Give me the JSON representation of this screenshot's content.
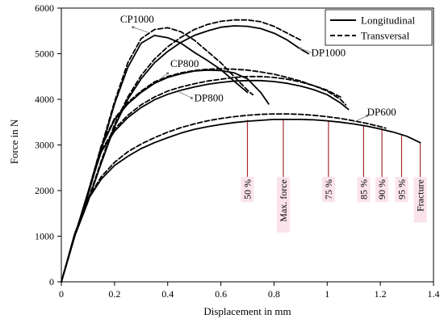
{
  "chart_data": {
    "type": "line",
    "title": "",
    "xlabel": "Displacement in mm",
    "ylabel": "Force in N",
    "xlim": [
      0,
      1.4
    ],
    "ylim": [
      0,
      6000
    ],
    "xticks": [
      0,
      0.2,
      0.4,
      0.6,
      0.8,
      1,
      1.2,
      1.4
    ],
    "xtick_labels": [
      "0",
      "0.2",
      "0.4",
      "0.6",
      "0.8",
      "1",
      "1.2",
      "1.4"
    ],
    "yticks": [
      0,
      1000,
      2000,
      3000,
      4000,
      5000,
      6000
    ],
    "ytick_labels": [
      "0",
      "1000",
      "2000",
      "3000",
      "4000",
      "5000",
      "6000"
    ],
    "grid": false,
    "legend": {
      "position": "top-right",
      "entries": [
        {
          "label": "Longitudinal",
          "style": "solid"
        },
        {
          "label": "Transversal",
          "style": "dashed"
        }
      ]
    },
    "series": [
      {
        "material": "CP1000",
        "style": "solid",
        "x": [
          0,
          0.05,
          0.1,
          0.15,
          0.2,
          0.25,
          0.3,
          0.35,
          0.4,
          0.45,
          0.5,
          0.55,
          0.6,
          0.65,
          0.7
        ],
        "y": [
          0,
          1000,
          1900,
          2900,
          3900,
          4700,
          5230,
          5400,
          5350,
          5230,
          5030,
          4850,
          4650,
          4400,
          4150
        ]
      },
      {
        "material": "CP1000",
        "style": "dashed",
        "x": [
          0,
          0.05,
          0.1,
          0.15,
          0.2,
          0.25,
          0.3,
          0.35,
          0.4,
          0.45,
          0.5,
          0.55,
          0.6,
          0.65,
          0.7,
          0.72
        ],
        "y": [
          0,
          1000,
          1900,
          2950,
          3950,
          4800,
          5330,
          5530,
          5570,
          5480,
          5300,
          5050,
          4800,
          4500,
          4200,
          4100
        ]
      },
      {
        "material": "DP1000",
        "style": "solid",
        "x": [
          0,
          0.05,
          0.1,
          0.15,
          0.2,
          0.25,
          0.3,
          0.35,
          0.4,
          0.45,
          0.5,
          0.55,
          0.6,
          0.65,
          0.7,
          0.75,
          0.8,
          0.85,
          0.9,
          0.93
        ],
        "y": [
          0,
          1000,
          1750,
          2600,
          3400,
          4000,
          4450,
          4800,
          5050,
          5250,
          5400,
          5500,
          5580,
          5610,
          5600,
          5550,
          5450,
          5300,
          5100,
          5000
        ]
      },
      {
        "material": "DP1000",
        "style": "dashed",
        "x": [
          0,
          0.05,
          0.1,
          0.15,
          0.2,
          0.25,
          0.3,
          0.35,
          0.4,
          0.45,
          0.5,
          0.55,
          0.6,
          0.65,
          0.7,
          0.75,
          0.8,
          0.85,
          0.9
        ],
        "y": [
          0,
          1000,
          1780,
          2650,
          3450,
          4050,
          4520,
          4880,
          5150,
          5360,
          5530,
          5640,
          5710,
          5740,
          5740,
          5700,
          5600,
          5450,
          5300
        ]
      },
      {
        "material": "CP800",
        "style": "solid",
        "x": [
          0,
          0.05,
          0.1,
          0.15,
          0.2,
          0.25,
          0.3,
          0.35,
          0.4,
          0.45,
          0.5,
          0.55,
          0.6,
          0.65,
          0.7,
          0.75,
          0.78
        ],
        "y": [
          0,
          1000,
          1950,
          2950,
          3550,
          3900,
          4150,
          4350,
          4480,
          4560,
          4620,
          4640,
          4630,
          4580,
          4450,
          4150,
          3900
        ]
      },
      {
        "material": "CP800",
        "style": "dashed",
        "x": [
          0,
          0.05,
          0.1,
          0.15,
          0.2,
          0.25,
          0.3,
          0.35,
          0.4,
          0.45,
          0.5,
          0.55,
          0.6,
          0.65,
          0.7,
          0.75,
          0.8,
          0.85,
          0.9,
          0.95,
          1.0,
          1.05
        ],
        "y": [
          0,
          1000,
          1950,
          2980,
          3580,
          3930,
          4180,
          4380,
          4500,
          4580,
          4630,
          4660,
          4670,
          4660,
          4640,
          4600,
          4550,
          4480,
          4400,
          4300,
          4200,
          4050
        ]
      },
      {
        "material": "DP800",
        "style": "solid",
        "x": [
          0,
          0.05,
          0.1,
          0.15,
          0.2,
          0.25,
          0.3,
          0.35,
          0.4,
          0.45,
          0.5,
          0.55,
          0.6,
          0.65,
          0.7,
          0.75,
          0.8,
          0.85,
          0.9,
          0.95,
          1.0,
          1.05,
          1.08
        ],
        "y": [
          0,
          1000,
          1950,
          2850,
          3300,
          3600,
          3820,
          3990,
          4110,
          4200,
          4270,
          4330,
          4370,
          4400,
          4410,
          4410,
          4390,
          4350,
          4290,
          4210,
          4100,
          3920,
          3780
        ]
      },
      {
        "material": "DP800",
        "style": "dashed",
        "x": [
          0,
          0.05,
          0.1,
          0.15,
          0.2,
          0.25,
          0.3,
          0.35,
          0.4,
          0.45,
          0.5,
          0.55,
          0.6,
          0.65,
          0.7,
          0.75,
          0.8,
          0.85,
          0.9,
          0.95,
          1.0,
          1.05,
          1.07
        ],
        "y": [
          0,
          1000,
          1950,
          2880,
          3350,
          3650,
          3880,
          4050,
          4180,
          4270,
          4340,
          4400,
          4440,
          4480,
          4500,
          4500,
          4480,
          4440,
          4380,
          4300,
          4180,
          4000,
          3880
        ]
      },
      {
        "material": "DP600",
        "style": "solid",
        "x": [
          0,
          0.05,
          0.1,
          0.15,
          0.2,
          0.25,
          0.3,
          0.35,
          0.4,
          0.45,
          0.5,
          0.55,
          0.6,
          0.65,
          0.7,
          0.75,
          0.8,
          0.85,
          0.9,
          0.95,
          1.0,
          1.05,
          1.1,
          1.15,
          1.2,
          1.25,
          1.3,
          1.35
        ],
        "y": [
          0,
          1050,
          1800,
          2250,
          2550,
          2750,
          2920,
          3050,
          3160,
          3260,
          3340,
          3400,
          3450,
          3490,
          3520,
          3540,
          3560,
          3560,
          3560,
          3550,
          3530,
          3500,
          3460,
          3410,
          3350,
          3280,
          3190,
          3050
        ]
      },
      {
        "material": "DP600",
        "style": "dashed",
        "x": [
          0,
          0.05,
          0.1,
          0.15,
          0.2,
          0.25,
          0.3,
          0.35,
          0.4,
          0.45,
          0.5,
          0.55,
          0.6,
          0.65,
          0.7,
          0.75,
          0.8,
          0.85,
          0.9,
          0.95,
          1.0,
          1.05,
          1.1,
          1.15,
          1.2,
          1.22
        ],
        "y": [
          0,
          1050,
          1820,
          2300,
          2620,
          2850,
          3020,
          3160,
          3280,
          3380,
          3460,
          3530,
          3580,
          3620,
          3650,
          3670,
          3680,
          3680,
          3670,
          3650,
          3620,
          3580,
          3530,
          3470,
          3400,
          3370
        ]
      }
    ],
    "curve_labels": [
      {
        "text": "CP1000",
        "x": 0.285,
        "y": 5680,
        "anchor": "middle",
        "leader": [
          [
            0.27,
            5580
          ],
          [
            0.325,
            5470
          ]
        ]
      },
      {
        "text": "DP1000",
        "x": 0.94,
        "y": 4950,
        "anchor": "start",
        "leader": [
          [
            0.9,
            5110
          ],
          [
            0.945,
            5020
          ]
        ]
      },
      {
        "text": "CP800",
        "x": 0.41,
        "y": 4710,
        "anchor": "start",
        "leader": [
          [
            0.4,
            4570
          ],
          [
            0.375,
            4470
          ]
        ]
      },
      {
        "text": "DP800",
        "x": 0.5,
        "y": 3960,
        "anchor": "start",
        "leader": [
          [
            0.49,
            4030
          ],
          [
            0.44,
            4170
          ]
        ]
      },
      {
        "text": "DP600",
        "x": 1.15,
        "y": 3650,
        "anchor": "start",
        "leader": [
          [
            1.15,
            3640
          ],
          [
            1.1,
            3500
          ]
        ]
      }
    ],
    "markers": [
      {
        "label": "50 %",
        "x": 0.7,
        "y_top": 3550,
        "label_y": 2300
      },
      {
        "label": "Max. force",
        "x": 0.835,
        "y_top": 3560,
        "label_y": 2300
      },
      {
        "label": "75 %",
        "x": 1.005,
        "y_top": 3530,
        "label_y": 2300
      },
      {
        "label": "85 %",
        "x": 1.137,
        "y_top": 3420,
        "label_y": 2300
      },
      {
        "label": "90 %",
        "x": 1.206,
        "y_top": 3360,
        "label_y": 2300
      },
      {
        "label": "95 %",
        "x": 1.28,
        "y_top": 3230,
        "label_y": 2300
      },
      {
        "label": "Fracture",
        "x": 1.35,
        "y_top": 3050,
        "label_y": 2300
      }
    ],
    "colors": {
      "axis": "#000000",
      "curve": "#000000",
      "marker_line": "#a52a2a",
      "marker_label_bg": "#fbe3ec"
    }
  }
}
